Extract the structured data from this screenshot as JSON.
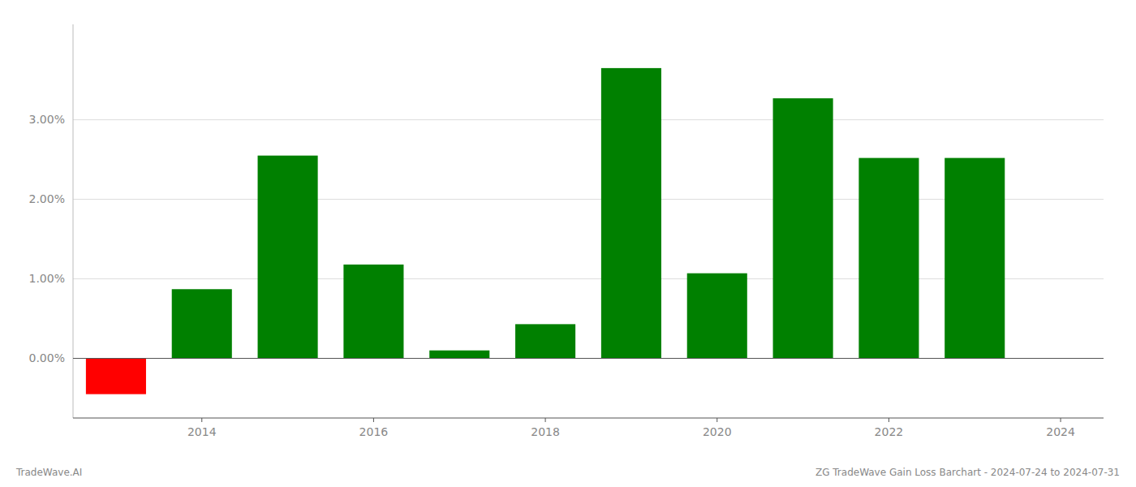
{
  "chart_data": {
    "type": "bar",
    "x": [
      2013,
      2014,
      2015,
      2016,
      2017,
      2018,
      2019,
      2020,
      2021,
      2022,
      2023
    ],
    "values": [
      -0.45,
      0.87,
      2.55,
      1.18,
      0.1,
      0.43,
      3.65,
      1.07,
      3.27,
      2.52,
      2.52
    ],
    "colors": [
      "#ff0000",
      "#008000",
      "#008000",
      "#008000",
      "#008000",
      "#008000",
      "#008000",
      "#008000",
      "#008000",
      "#008000",
      "#008000"
    ],
    "xlim": [
      2012.5,
      2024.5
    ],
    "xticks": [
      2014,
      2016,
      2018,
      2020,
      2022,
      2024
    ],
    "ylim": [
      -0.75,
      4.2
    ],
    "yticks": [
      {
        "value": 0.0,
        "label": "0.00%"
      },
      {
        "value": 1.0,
        "label": "1.00%"
      },
      {
        "value": 2.0,
        "label": "2.00%"
      },
      {
        "value": 3.0,
        "label": "3.00%"
      }
    ],
    "grid": true,
    "annotations": [
      "TradeWave.AI",
      "ZG TradeWave Gain Loss Barchart - 2024-07-24 to 2024-07-31"
    ]
  }
}
